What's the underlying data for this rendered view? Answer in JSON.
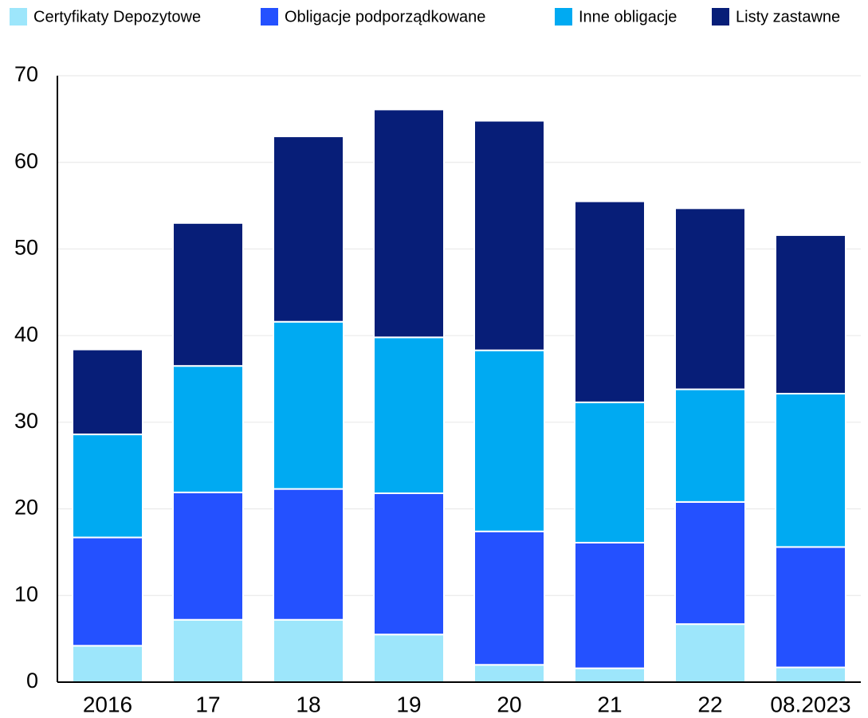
{
  "chart_data": {
    "type": "stacked_bar",
    "categories": [
      "2016",
      "17",
      "18",
      "19",
      "20",
      "21",
      "22",
      "08.2023"
    ],
    "series": [
      {
        "name": "Certyfikaty Depozytowe",
        "color": "#9de6fb",
        "values": [
          4.2,
          7.2,
          7.2,
          5.5,
          2.0,
          1.6,
          6.7,
          1.7
        ]
      },
      {
        "name": "Obligacje podporządkowane",
        "color": "#2451ff",
        "values": [
          12.5,
          14.7,
          15.1,
          16.3,
          15.4,
          14.5,
          14.1,
          13.9
        ]
      },
      {
        "name": "Inne obligacje",
        "color": "#00aaf2",
        "values": [
          11.9,
          14.6,
          19.3,
          18.0,
          20.9,
          16.2,
          13.0,
          17.7
        ]
      },
      {
        "name": "Listy zastawne",
        "color": "#071e78",
        "values": [
          9.8,
          16.5,
          21.4,
          26.3,
          26.5,
          23.2,
          20.9,
          18.3
        ]
      }
    ],
    "ylim": [
      0,
      70
    ],
    "yticks": [
      0,
      10,
      20,
      30,
      40,
      50,
      60,
      70
    ],
    "grid": true,
    "legend": "top"
  }
}
